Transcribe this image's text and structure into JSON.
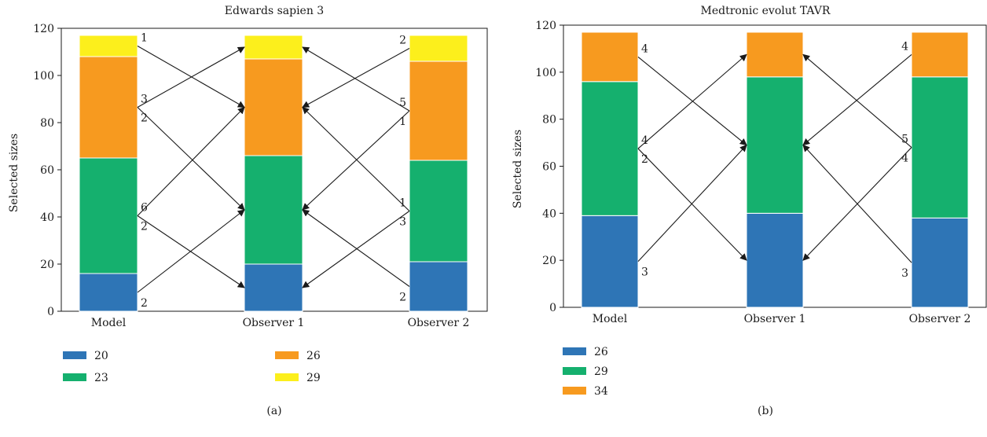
{
  "colors": {
    "size_20": "#2e75b6",
    "size_23": "#15b06e",
    "size_26": "#f79a1f",
    "size_29": "#fcef1c",
    "size_34": "#f79a1f",
    "axis": "#1a1a1a"
  },
  "chart_data": [
    {
      "type": "bar",
      "stacked": true,
      "panel_label": "(a)",
      "title": "Edwards sapien 3",
      "xlabel": "",
      "ylabel": "Selected sizes",
      "ylim": [
        0,
        120
      ],
      "yticks": [
        0,
        20,
        40,
        60,
        80,
        100,
        120
      ],
      "categories": [
        "Model",
        "Observer 1",
        "Observer 2"
      ],
      "series": [
        {
          "name": "20",
          "values": [
            16,
            20,
            21
          ]
        },
        {
          "name": "23",
          "values": [
            49,
            46,
            43
          ]
        },
        {
          "name": "26",
          "values": [
            43,
            41,
            42
          ]
        },
        {
          "name": "29",
          "values": [
            9,
            10,
            11
          ]
        }
      ],
      "legend": {
        "placement": "bottom",
        "columns": 2
      },
      "transitions": [
        {
          "from": 0,
          "from_series": 3,
          "to_series": 2,
          "label": "1"
        },
        {
          "from": 0,
          "from_series": 2,
          "to_series": 3,
          "label": "2"
        },
        {
          "from": 0,
          "from_series": 2,
          "to_series": 1,
          "label": "3"
        },
        {
          "from": 0,
          "from_series": 1,
          "to_series": 2,
          "label": "2"
        },
        {
          "from": 0,
          "from_series": 1,
          "to_series": 0,
          "label": "6"
        },
        {
          "from": 0,
          "from_series": 0,
          "to_series": 1,
          "label": "2"
        },
        {
          "from": 2,
          "from_series": 3,
          "to_series": 2,
          "label": "2"
        },
        {
          "from": 2,
          "from_series": 2,
          "to_series": 3,
          "label": "1"
        },
        {
          "from": 2,
          "from_series": 2,
          "to_series": 1,
          "label": "5"
        },
        {
          "from": 2,
          "from_series": 1,
          "to_series": 2,
          "label": "3"
        },
        {
          "from": 2,
          "from_series": 1,
          "to_series": 0,
          "label": "1"
        },
        {
          "from": 2,
          "from_series": 0,
          "to_series": 1,
          "label": "2"
        }
      ]
    },
    {
      "type": "bar",
      "stacked": true,
      "panel_label": "(b)",
      "title": "Medtronic evolut TAVR",
      "xlabel": "",
      "ylabel": "Selected sizes",
      "ylim": [
        0,
        120
      ],
      "yticks": [
        0,
        20,
        40,
        60,
        80,
        100,
        120
      ],
      "categories": [
        "Model",
        "Observer 1",
        "Observer 2"
      ],
      "series": [
        {
          "name": "26",
          "values": [
            39,
            40,
            38
          ]
        },
        {
          "name": "29",
          "values": [
            57,
            58,
            60
          ]
        },
        {
          "name": "34",
          "values": [
            21,
            19,
            19
          ]
        }
      ],
      "legend": {
        "placement": "bottom",
        "columns": 1
      },
      "transitions": [
        {
          "from": 0,
          "from_series": 2,
          "to_series": 1,
          "label": "4"
        },
        {
          "from": 0,
          "from_series": 1,
          "to_series": 2,
          "label": "2"
        },
        {
          "from": 0,
          "from_series": 1,
          "to_series": 0,
          "label": "4"
        },
        {
          "from": 0,
          "from_series": 0,
          "to_series": 1,
          "label": "3"
        },
        {
          "from": 2,
          "from_series": 2,
          "to_series": 1,
          "label": "4"
        },
        {
          "from": 2,
          "from_series": 1,
          "to_series": 2,
          "label": "4"
        },
        {
          "from": 2,
          "from_series": 1,
          "to_series": 0,
          "label": "5"
        },
        {
          "from": 2,
          "from_series": 0,
          "to_series": 1,
          "label": "3"
        }
      ]
    }
  ]
}
